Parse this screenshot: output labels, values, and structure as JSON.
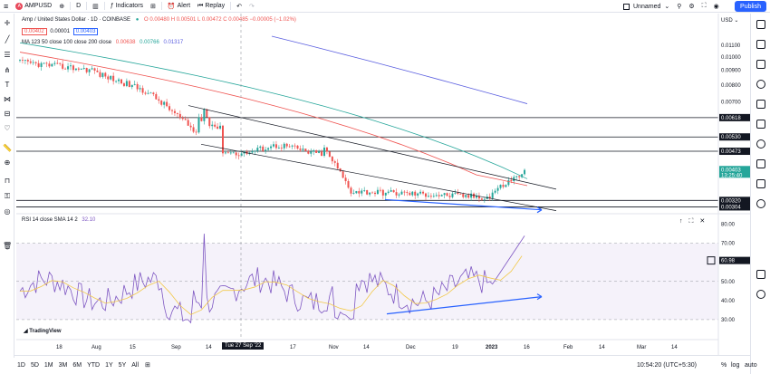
{
  "topbar": {
    "symbol": "AMPUSD",
    "interval": "D",
    "indicators_label": "Indicators",
    "alert_label": "Alert",
    "replay_label": "Replay",
    "layout_name": "Unnamed",
    "publish_label": "Publish"
  },
  "legend": {
    "title": "Amp / United States Dollar · 1D · COINBASE",
    "ohlc": "O 0.00480  H 0.00501  L 0.00472  C 0.00485  −0.00005 (−1.02%)",
    "bid": "0.00402",
    "spread": "0.00001",
    "ask": "0.00403",
    "ma_label": "MA 123 50 close 100 close 200 close",
    "ma_values": [
      "0.00638",
      "0.00766",
      "0.01317"
    ],
    "rsi_label": "RSI 14 close SMA 14 2",
    "rsi_value": "32.10"
  },
  "price_axis": {
    "currency": "USD",
    "ticks": [
      "0.01100",
      "0.01000",
      "0.00900",
      "0.00800",
      "0.00700",
      "0.00618",
      "0.00530",
      "0.00473",
      "0.00403",
      "0.00320",
      "0.00304"
    ],
    "current_price": "0.00403",
    "countdown": "13:25:40"
  },
  "rsi_axis": {
    "ticks": [
      "80.00",
      "70.00",
      "60.98",
      "50.00",
      "40.00",
      "30.00"
    ],
    "current": "60.98"
  },
  "time_axis": {
    "ticks": [
      "18",
      "Aug",
      "15",
      "Sep",
      "14",
      "17",
      "Nov",
      "14",
      "Dec",
      "19",
      "2023",
      "16",
      "Feb",
      "14",
      "Mar",
      "14"
    ],
    "crosshair_date": "Tue 27 Sep '22"
  },
  "bottombar": {
    "ranges": [
      "1D",
      "5D",
      "1M",
      "3M",
      "6M",
      "YTD",
      "1Y",
      "5Y",
      "All"
    ],
    "clock": "10:54:20 (UTC+5:30)",
    "pct": "%",
    "log": "log",
    "auto": "auto"
  },
  "watermark": "TradingView",
  "colors": {
    "up": "#26a69a",
    "down": "#ef5350",
    "ma50": "#ef5350",
    "ma100": "#26a69a",
    "ma200": "#5b5fe0",
    "rsi": "#7e57c2",
    "accent": "#2962ff",
    "trend_arrow": "#2962ff"
  }
}
